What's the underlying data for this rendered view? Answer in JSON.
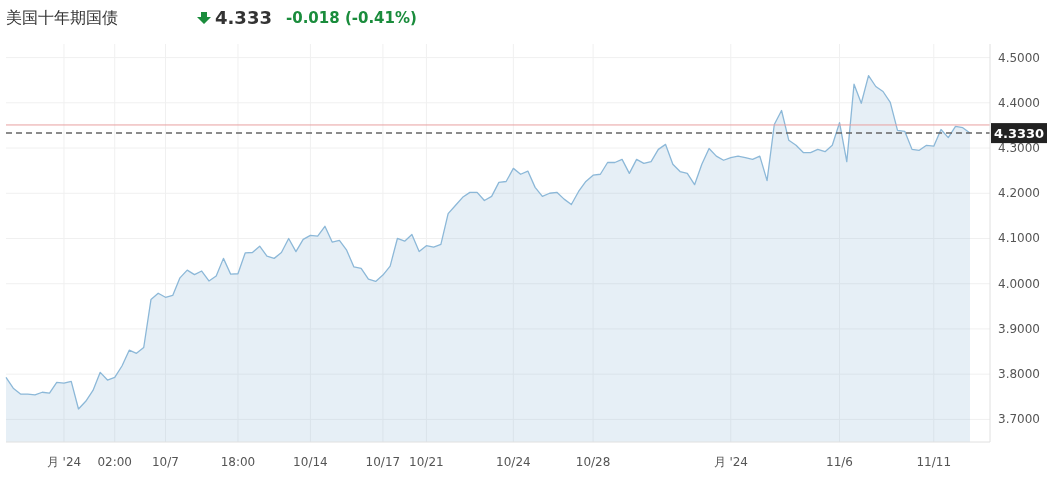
{
  "chart_data": {
    "type": "area",
    "title": "美国十年期国债",
    "subtitle": "4.333",
    "annotations": [
      "-0.018 (-0.41%)"
    ],
    "categories": [
      null,
      null,
      null,
      null,
      null,
      null,
      null,
      null,
      "月 '24",
      null,
      null,
      null,
      null,
      null,
      null,
      "02:00",
      null,
      null,
      null,
      null,
      null,
      null,
      "10/7",
      null,
      null,
      null,
      null,
      null,
      null,
      null,
      null,
      null,
      "18:00",
      null,
      null,
      null,
      null,
      null,
      null,
      null,
      null,
      null,
      "10/14",
      null,
      null,
      null,
      null,
      null,
      null,
      null,
      null,
      null,
      "10/17",
      null,
      null,
      null,
      null,
      null,
      "10/21",
      null,
      null,
      null,
      null,
      null,
      null,
      null,
      null,
      null,
      null,
      null,
      "10/24",
      null,
      null,
      null,
      null,
      null,
      null,
      null,
      null,
      null,
      null,
      "10/28",
      null,
      null,
      null,
      null,
      null,
      null,
      null,
      null,
      null,
      null,
      null,
      null,
      null,
      null,
      null,
      null,
      null,
      null,
      "月 '24",
      null,
      null,
      null,
      null,
      null,
      null,
      null,
      null,
      null,
      null,
      null,
      null,
      null,
      null,
      "11/6",
      null,
      null,
      null,
      null,
      null,
      null,
      null,
      null,
      null,
      null,
      null,
      null,
      "11/11",
      null,
      null,
      null,
      null,
      null
    ],
    "ylim": [
      3.65,
      4.53
    ],
    "yticks": [
      {
        "value": 3.7,
        "label": "3.7000"
      },
      {
        "value": 3.8,
        "label": "3.8000"
      },
      {
        "value": 3.9,
        "label": "3.9000"
      },
      {
        "value": 4.0,
        "label": "4.0000"
      },
      {
        "value": 4.1,
        "label": "4.1000"
      },
      {
        "value": 4.2,
        "label": "4.2000"
      },
      {
        "value": 4.3,
        "label": "4.3000"
      },
      {
        "value": 4.4,
        "label": "4.4000"
      },
      {
        "value": 4.5,
        "label": "4.5000"
      }
    ],
    "grid": true,
    "ref_lines": [
      {
        "axis": "y",
        "value": 4.351,
        "color": "#e8a0a0",
        "line_style": "solid"
      },
      {
        "axis": "y",
        "value": 4.333,
        "label": "4.3330",
        "color": "#666666",
        "line_style": "dashed"
      }
    ],
    "series": [
      {
        "color": "#8cb8d8",
        "values": [
          3.793,
          3.769,
          3.756,
          3.756,
          3.754,
          3.76,
          3.758,
          3.782,
          3.78,
          3.784,
          3.723,
          3.74,
          3.764,
          3.804,
          3.787,
          3.793,
          3.818,
          3.853,
          3.846,
          3.859,
          3.965,
          3.979,
          3.97,
          3.974,
          4.013,
          4.03,
          4.02,
          4.028,
          4.006,
          4.017,
          4.056,
          4.021,
          4.022,
          4.068,
          4.069,
          4.083,
          4.061,
          4.056,
          4.069,
          4.1,
          4.071,
          4.098,
          4.107,
          4.105,
          4.127,
          4.092,
          4.096,
          4.074,
          4.037,
          4.034,
          4.01,
          4.005,
          4.019,
          4.039,
          4.1,
          4.094,
          4.109,
          4.071,
          4.084,
          4.081,
          4.087,
          4.155,
          4.173,
          4.191,
          4.202,
          4.202,
          4.184,
          4.193,
          4.224,
          4.226,
          4.255,
          4.242,
          4.249,
          4.213,
          4.193,
          4.2,
          4.202,
          4.187,
          4.175,
          4.204,
          4.226,
          4.24,
          4.242,
          4.268,
          4.268,
          4.275,
          4.244,
          4.275,
          4.266,
          4.27,
          4.297,
          4.308,
          4.264,
          4.248,
          4.244,
          4.219,
          4.264,
          4.299,
          4.282,
          4.273,
          4.279,
          4.282,
          4.279,
          4.275,
          4.282,
          4.228,
          4.352,
          4.383,
          4.317,
          4.306,
          4.29,
          4.29,
          4.297,
          4.292,
          4.306,
          4.356,
          4.27,
          4.441,
          4.399,
          4.46,
          4.436,
          4.425,
          4.401,
          4.339,
          4.337,
          4.297,
          4.295,
          4.306,
          4.304,
          4.341,
          4.323,
          4.348,
          4.345,
          4.333
        ]
      }
    ]
  }
}
